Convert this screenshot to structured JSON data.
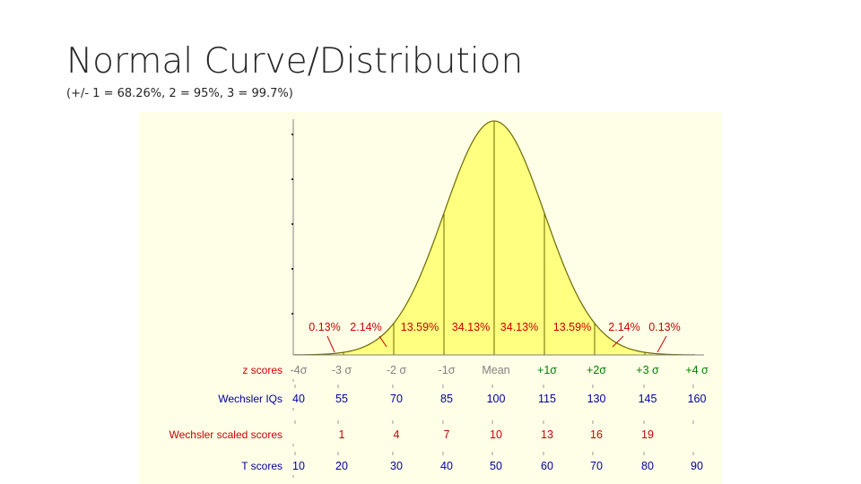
{
  "slide": {
    "title": "Normal Curve/Distribution",
    "subtitle": "(+/- 1 = 68.26%, 2 = 95%, 3 = 99.7%)"
  },
  "colors": {
    "panel_bg": "#ffffe8",
    "curve_fill": "#ffff80",
    "curve_stroke": "#6b6b00",
    "axis": "#808080",
    "label_red": "#cc0000",
    "label_green": "#008000",
    "label_blue": "#000099",
    "label_gray": "#808080",
    "arrow_red": "#cc0000"
  },
  "chart_data": {
    "type": "area",
    "distribution": "normal",
    "mean": 0,
    "sd": 1,
    "xlim": [
      -4,
      4
    ],
    "sigma_lines": [
      -3,
      -2,
      -1,
      0,
      1,
      2,
      3
    ],
    "area_percentages": [
      {
        "label": "0.13%",
        "from": -4,
        "to": -3
      },
      {
        "label": "2.14%",
        "from": -3,
        "to": -2
      },
      {
        "label": "13.59%",
        "from": -2,
        "to": -1
      },
      {
        "label": "34.13%",
        "from": -1,
        "to": 0
      },
      {
        "label": "34.13%",
        "from": 0,
        "to": 1
      },
      {
        "label": "13.59%",
        "from": 1,
        "to": 2
      },
      {
        "label": "2.14%",
        "from": 2,
        "to": 3
      },
      {
        "label": "0.13%",
        "from": 3,
        "to": 4
      }
    ],
    "scales": [
      {
        "name": "z scores",
        "color": "label_blue",
        "label_color": "label_red",
        "values": [
          "-4σ",
          "-3 σ",
          "-2 σ",
          "-1σ",
          "Mean",
          "+1σ",
          "+2σ",
          "+3 σ",
          "+4 σ"
        ],
        "value_colors": [
          "label_gray",
          "label_gray",
          "label_gray",
          "label_gray",
          "label_gray",
          "label_green",
          "label_green",
          "label_green",
          "label_green"
        ]
      },
      {
        "name": "Wechsler IQs",
        "label_color": "label_blue",
        "color": "label_blue",
        "values": [
          "40",
          "55",
          "70",
          "85",
          "100",
          "115",
          "130",
          "145",
          "160"
        ]
      },
      {
        "name": "Wechsler scaled scores",
        "label_color": "label_red",
        "color": "label_red",
        "values": [
          "",
          "1",
          "4",
          "7",
          "10",
          "13",
          "16",
          "19",
          ""
        ]
      },
      {
        "name": "T scores",
        "label_color": "label_blue",
        "color": "label_blue",
        "values": [
          "10",
          "20",
          "30",
          "40",
          "50",
          "60",
          "70",
          "80",
          "90"
        ]
      }
    ]
  }
}
